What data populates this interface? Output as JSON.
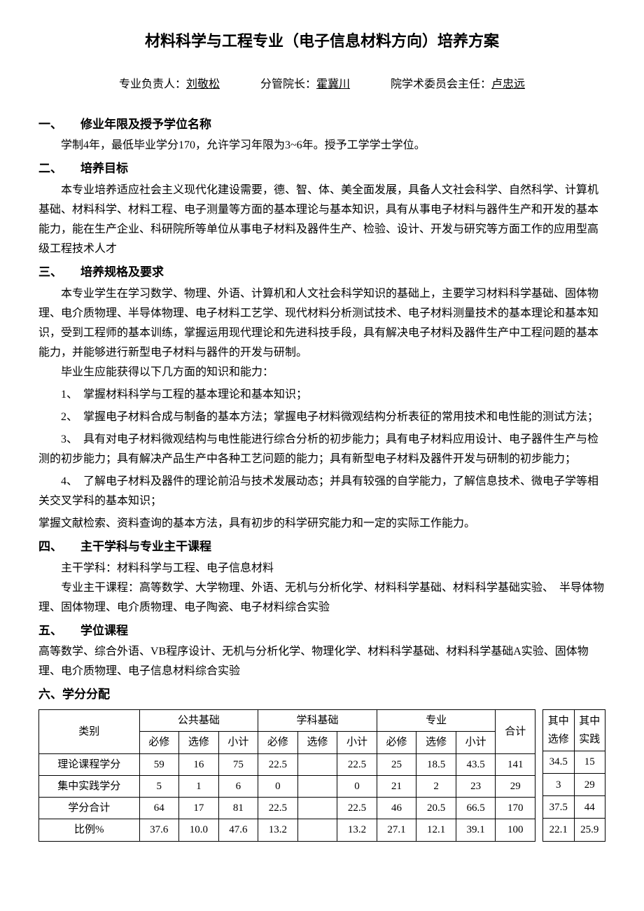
{
  "title": "材料科学与工程专业（电子信息材料方向）培养方案",
  "signoff": {
    "leader_label": "专业负责人：",
    "leader_name": "刘敬松",
    "dean_label": "分管院长：",
    "dean_name": "霍冀川",
    "committee_label": "院学术委员会主任：",
    "committee_name": "卢忠远"
  },
  "sections": {
    "s1": {
      "num": "一、",
      "title": "修业年限及授予学位名称",
      "p1": "学制4年，最低毕业学分170，允许学习年限为3~6年。授予工学学士学位。"
    },
    "s2": {
      "num": "二、",
      "title": "培养目标",
      "p1": "本专业培养适应社会主义现代化建设需要，德、智、体、美全面发展，具备人文社会科学、自然科学、计算机基础、材料科学、材料工程、电子测量等方面的基本理论与基本知识，具有从事电子材料与器件生产和开发的基本能力，能在生产企业、科研院所等单位从事电子材料及器件生产、检验、设计、开发与研究等方面工作的应用型高级工程技术人才"
    },
    "s3": {
      "num": "三、",
      "title": "培养规格及要求",
      "p1": "本专业学生在学习数学、物理、外语、计算机和人文社会科学知识的基础上，主要学习材料科学基础、固体物理、电介质物理、半导体物理、电子材料工艺学、现代材料分析测试技术、电子材料测量技术的基本理论和基本知识，受到工程师的基本训练，掌握运用现代理论和先进科技手段，具有解决电子材料及器件生产中工程问题的基本能力，并能够进行新型电子材料与器件的开发与研制。",
      "p2": "毕业生应能获得以下几方面的知识和能力：",
      "i1": "1、　掌握材料科学与工程的基本理论和基本知识；",
      "i2": "2、　掌握电子材料合成与制备的基本方法；掌握电子材料微观结构分析表征的常用技术和电性能的测试方法；",
      "i3": "3、　具有对电子材料微观结构与电性能进行综合分析的初步能力；具有电子材料应用设计、电子器件生产与检测的初步能力；具有解决产品生产中各种工艺问题的能力；具有新型电子材料及器件开发与研制的初步能力；",
      "i4": "4、　了解电子材料及器件的理论前沿与技术发展动态；并具有较强的自学能力，了解信息技术、微电子学等相关交叉学科的基本知识；",
      "p3": "掌握文献检索、资料查询的基本方法，具有初步的科学研究能力和一定的实际工作能力。"
    },
    "s4": {
      "num": "四、",
      "title": "主干学科与专业主干课程",
      "p1": "主干学科：材料科学与工程、电子信息材料",
      "p2": "专业主干课程：高等数学、大学物理、外语、无机与分析化学、材料科学基础、材料科学基础实验、　半导体物理、固体物理、电介质物理、电子陶瓷、电子材料综合实验"
    },
    "s5": {
      "num": "五、",
      "title": "学位课程",
      "p1": "高等数学、综合外语、VB程序设计、无机与分析化学、物理化学、材料科学基础、材料科学基础A实验、固体物理、电介质物理、电子信息材料综合实验"
    },
    "s6": {
      "num": "六、学分分配",
      "title": ""
    }
  },
  "table": {
    "headers": {
      "category": "类别",
      "public": "公共基础",
      "subject": "学科基础",
      "major": "专业",
      "total": "合计",
      "of_elective": "其中选修",
      "of_practice": "其中实践",
      "required": "必修",
      "elective": "选修",
      "subtotal": "小计"
    },
    "rows": [
      {
        "label": "理论课程学分",
        "pub_r": "59",
        "pub_e": "16",
        "pub_s": "75",
        "sub_r": "22.5",
        "sub_e": "",
        "sub_s": "22.5",
        "maj_r": "25",
        "maj_e": "18.5",
        "maj_s": "43.5",
        "total": "141",
        "elective": "34.5",
        "practice": "15"
      },
      {
        "label": "集中实践学分",
        "pub_r": "5",
        "pub_e": "1",
        "pub_s": "6",
        "sub_r": "0",
        "sub_e": "",
        "sub_s": "0",
        "maj_r": "21",
        "maj_e": "2",
        "maj_s": "23",
        "total": "29",
        "elective": "3",
        "practice": "29"
      },
      {
        "label": "学分合计",
        "pub_r": "64",
        "pub_e": "17",
        "pub_s": "81",
        "sub_r": "22.5",
        "sub_e": "",
        "sub_s": "22.5",
        "maj_r": "46",
        "maj_e": "20.5",
        "maj_s": "66.5",
        "total": "170",
        "elective": "37.5",
        "practice": "44"
      },
      {
        "label": "比例%",
        "pub_r": "37.6",
        "pub_e": "10.0",
        "pub_s": "47.6",
        "sub_r": "13.2",
        "sub_e": "",
        "sub_s": "13.2",
        "maj_r": "27.1",
        "maj_e": "12.1",
        "maj_s": "39.1",
        "total": "100",
        "elective": "22.1",
        "practice": "25.9"
      }
    ]
  }
}
